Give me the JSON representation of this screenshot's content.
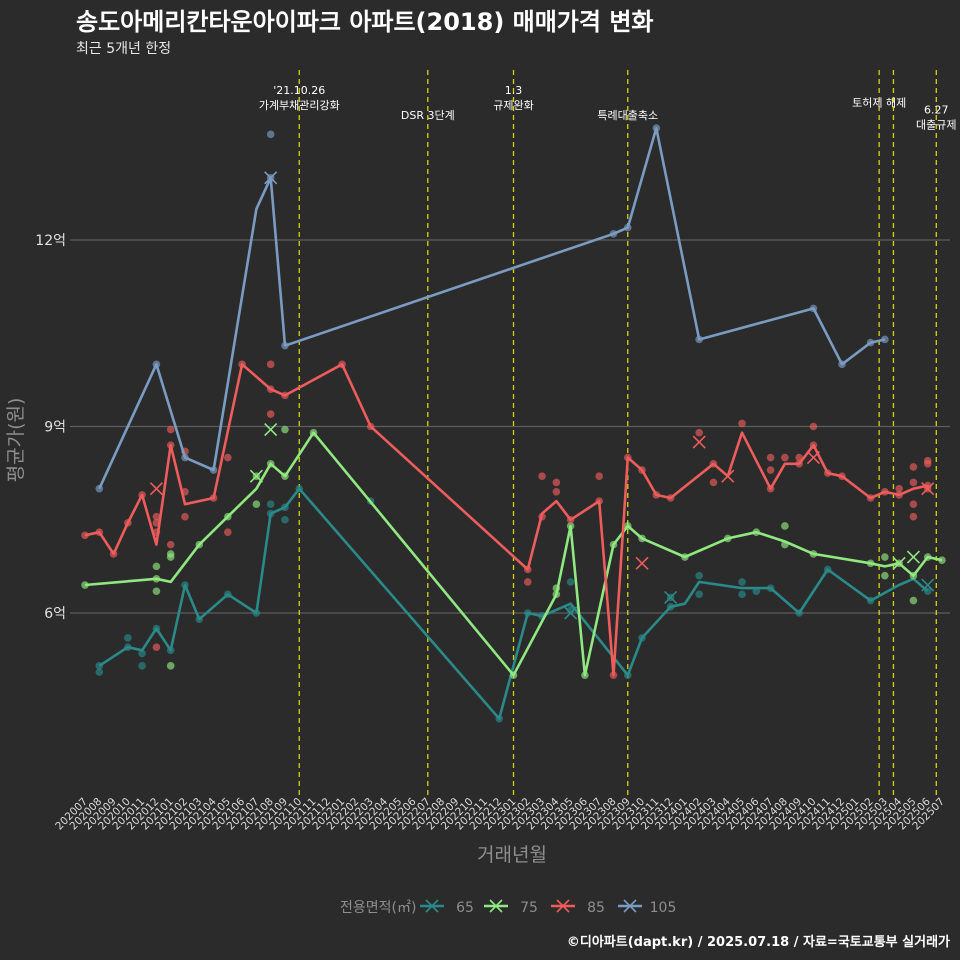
{
  "title": "송도아메리칸타운아이파크 아파트(2018) 매매가격 변화",
  "subtitle": "최근 5개년 한정",
  "footer": "©디아파트(dapt.kr) / 2025.07.18 / 자료=국토교통부 실거래가",
  "chart_data": {
    "type": "line",
    "xlabel": "거래년월",
    "ylabel": "평균가(원)",
    "ylim": [
      3.8,
      13.7
    ],
    "y_ticks": [
      {
        "value": 6,
        "label": "6억"
      },
      {
        "value": 9,
        "label": "9억"
      },
      {
        "value": 12,
        "label": "12억"
      }
    ],
    "x_categories": [
      "202007",
      "202008",
      "202009",
      "202010",
      "202011",
      "202012",
      "202101",
      "202102",
      "202103",
      "202104",
      "202105",
      "202106",
      "202107",
      "202108",
      "202109",
      "202110",
      "202111",
      "202112",
      "202201",
      "202202",
      "202203",
      "202204",
      "202205",
      "202206",
      "202207",
      "202208",
      "202209",
      "202210",
      "202211",
      "202212",
      "202301",
      "202302",
      "202303",
      "202304",
      "202305",
      "202306",
      "202307",
      "202308",
      "202309",
      "202310",
      "202311",
      "202312",
      "202401",
      "202402",
      "202403",
      "202404",
      "202405",
      "202406",
      "202407",
      "202408",
      "202409",
      "202410",
      "202411",
      "202412",
      "202501",
      "202502",
      "202503",
      "202504",
      "202505",
      "202506",
      "202507"
    ],
    "legend_title": "전용면적(㎡)",
    "grid": true,
    "events": [
      {
        "x": 15.0,
        "label_lines": [
          "'21.10.26",
          "가계부채관리강화"
        ],
        "level": 0
      },
      {
        "x": 24.0,
        "label_lines": [
          "DSR 3단계"
        ],
        "level": 2
      },
      {
        "x": 30.0,
        "label_lines": [
          "1.3",
          "규제완화"
        ],
        "level": 0
      },
      {
        "x": 38.0,
        "label_lines": [
          "특례대출축소"
        ],
        "level": 2
      },
      {
        "x": 55.6,
        "label_lines": [
          "토허제 해제"
        ],
        "level": 1
      },
      {
        "x": 56.6,
        "label_lines": [],
        "level": 1
      },
      {
        "x": 59.6,
        "label_lines": [
          "6.27",
          "대출규제"
        ],
        "level": 1.55
      }
    ],
    "series": [
      {
        "name": "65",
        "color": "#2a8a8a",
        "line": [
          [
            1,
            5.15
          ],
          [
            3,
            5.45
          ],
          [
            4,
            5.4
          ],
          [
            5,
            5.75
          ],
          [
            6,
            5.4
          ],
          [
            7,
            6.45
          ],
          [
            8,
            5.9
          ],
          [
            10,
            6.3
          ],
          [
            12,
            6.0
          ],
          [
            13,
            7.6
          ],
          [
            14,
            7.7
          ],
          [
            15,
            8.0
          ],
          [
            29,
            4.3
          ],
          [
            31,
            6.0
          ],
          [
            32,
            5.95
          ],
          [
            34,
            6.15
          ],
          [
            38,
            5.0
          ],
          [
            39,
            5.6
          ],
          [
            41,
            6.1
          ],
          [
            42,
            6.15
          ],
          [
            43,
            6.5
          ],
          [
            46,
            6.4
          ],
          [
            47,
            6.4
          ],
          [
            48,
            6.4
          ],
          [
            50,
            6.0
          ],
          [
            52,
            6.7
          ],
          [
            55,
            6.2
          ],
          [
            57,
            6.45
          ],
          [
            58,
            6.55
          ],
          [
            59,
            6.35
          ]
        ],
        "points": [
          [
            1,
            5.05
          ],
          [
            1,
            5.15
          ],
          [
            3,
            5.45
          ],
          [
            3,
            5.6
          ],
          [
            4,
            5.35
          ],
          [
            4,
            5.15
          ],
          [
            5,
            5.75
          ],
          [
            6,
            5.4
          ],
          [
            7,
            6.45
          ],
          [
            8,
            5.9
          ],
          [
            10,
            6.3
          ],
          [
            12,
            6.0
          ],
          [
            13,
            7.6
          ],
          [
            13,
            7.75
          ],
          [
            14,
            7.7
          ],
          [
            14,
            7.5
          ],
          [
            15,
            8.0
          ],
          [
            20,
            7.8
          ],
          [
            29,
            4.3
          ],
          [
            31,
            6.0
          ],
          [
            32,
            5.95
          ],
          [
            34,
            6.5
          ],
          [
            34,
            6.05
          ],
          [
            38,
            5.0
          ],
          [
            39,
            5.6
          ],
          [
            41,
            6.1
          ],
          [
            41,
            6.25
          ],
          [
            43,
            6.3
          ],
          [
            43,
            6.6
          ],
          [
            46,
            6.5
          ],
          [
            46,
            6.3
          ],
          [
            47,
            6.35
          ],
          [
            48,
            6.4
          ],
          [
            50,
            6.0
          ],
          [
            52,
            6.7
          ],
          [
            55,
            6.2
          ],
          [
            59,
            6.35
          ]
        ],
        "marks": [
          [
            34,
            6.0
          ],
          [
            41,
            6.25
          ],
          [
            59,
            6.45
          ]
        ]
      },
      {
        "name": "75",
        "color": "#90e880",
        "line": [
          [
            0,
            6.45
          ],
          [
            5,
            6.55
          ],
          [
            6,
            6.5
          ],
          [
            8,
            7.1
          ],
          [
            10,
            7.55
          ],
          [
            12,
            8.0
          ],
          [
            13,
            8.4
          ],
          [
            14,
            8.2
          ],
          [
            16,
            8.9
          ],
          [
            30,
            5.0
          ],
          [
            33,
            6.3
          ],
          [
            34,
            7.4
          ],
          [
            35,
            5.0
          ],
          [
            37,
            7.1
          ],
          [
            38,
            7.4
          ],
          [
            39,
            7.2
          ],
          [
            42,
            6.9
          ],
          [
            45,
            7.2
          ],
          [
            47,
            7.3
          ],
          [
            49,
            7.15
          ],
          [
            51,
            6.95
          ],
          [
            55,
            6.8
          ],
          [
            56,
            6.75
          ],
          [
            57,
            6.8
          ],
          [
            58,
            6.6
          ],
          [
            59,
            6.9
          ],
          [
            60,
            6.85
          ]
        ],
        "points": [
          [
            0,
            6.45
          ],
          [
            5,
            6.55
          ],
          [
            5,
            6.75
          ],
          [
            5,
            6.35
          ],
          [
            6,
            6.9
          ],
          [
            6,
            6.95
          ],
          [
            6,
            5.15
          ],
          [
            8,
            7.1
          ],
          [
            10,
            7.55
          ],
          [
            12,
            7.75
          ],
          [
            12,
            8.2
          ],
          [
            13,
            8.4
          ],
          [
            14,
            8.2
          ],
          [
            14,
            8.95
          ],
          [
            16,
            8.9
          ],
          [
            30,
            5.0
          ],
          [
            33,
            6.3
          ],
          [
            33,
            6.4
          ],
          [
            34,
            7.4
          ],
          [
            35,
            5.0
          ],
          [
            37,
            7.1
          ],
          [
            38,
            7.4
          ],
          [
            39,
            7.2
          ],
          [
            42,
            6.9
          ],
          [
            45,
            7.2
          ],
          [
            47,
            7.3
          ],
          [
            49,
            7.1
          ],
          [
            49,
            7.4
          ],
          [
            51,
            6.95
          ],
          [
            55,
            6.8
          ],
          [
            56,
            6.6
          ],
          [
            56,
            6.9
          ],
          [
            57,
            6.8
          ],
          [
            58,
            6.2
          ],
          [
            58,
            6.6
          ],
          [
            59,
            6.9
          ],
          [
            60,
            6.85
          ]
        ],
        "marks": [
          [
            12,
            8.2
          ],
          [
            13,
            8.95
          ],
          [
            57,
            6.8
          ],
          [
            58,
            6.9
          ]
        ]
      },
      {
        "name": "85",
        "color": "#ee5c5c",
        "line": [
          [
            0,
            7.25
          ],
          [
            1,
            7.3
          ],
          [
            2,
            6.95
          ],
          [
            3,
            7.45
          ],
          [
            4,
            7.9
          ],
          [
            5,
            7.1
          ],
          [
            6,
            8.7
          ],
          [
            7,
            7.75
          ],
          [
            9,
            7.85
          ],
          [
            11,
            10.0
          ],
          [
            13,
            9.6
          ],
          [
            14,
            9.5
          ],
          [
            18,
            10.0
          ],
          [
            20,
            9.0
          ],
          [
            31,
            6.7
          ],
          [
            32,
            7.6
          ],
          [
            33,
            7.8
          ],
          [
            34,
            7.5
          ],
          [
            36,
            7.8
          ],
          [
            37,
            5.0
          ],
          [
            38,
            8.5
          ],
          [
            39,
            8.3
          ],
          [
            40,
            7.9
          ],
          [
            41,
            7.85
          ],
          [
            44,
            8.4
          ],
          [
            45,
            8.2
          ],
          [
            46,
            8.9
          ],
          [
            48,
            8.0
          ],
          [
            49,
            8.4
          ],
          [
            50,
            8.4
          ],
          [
            51,
            8.7
          ],
          [
            52,
            8.25
          ],
          [
            53,
            8.2
          ],
          [
            55,
            7.85
          ],
          [
            56,
            7.95
          ],
          [
            57,
            7.9
          ],
          [
            58,
            8.0
          ],
          [
            59,
            8.05
          ]
        ],
        "points": [
          [
            0,
            7.25
          ],
          [
            1,
            7.3
          ],
          [
            2,
            6.95
          ],
          [
            3,
            7.45
          ],
          [
            4,
            7.9
          ],
          [
            5,
            7.55
          ],
          [
            5,
            7.45
          ],
          [
            5,
            7.3
          ],
          [
            5,
            5.45
          ],
          [
            6,
            8.95
          ],
          [
            6,
            8.7
          ],
          [
            6,
            7.1
          ],
          [
            7,
            8.6
          ],
          [
            7,
            7.95
          ],
          [
            7,
            7.55
          ],
          [
            9,
            7.85
          ],
          [
            10,
            7.3
          ],
          [
            10,
            8.5
          ],
          [
            11,
            10.0
          ],
          [
            13,
            10.0
          ],
          [
            13,
            9.2
          ],
          [
            13,
            9.6
          ],
          [
            14,
            9.5
          ],
          [
            18,
            10.0
          ],
          [
            20,
            9.0
          ],
          [
            31,
            6.5
          ],
          [
            31,
            6.7
          ],
          [
            32,
            8.2
          ],
          [
            32,
            7.55
          ],
          [
            33,
            8.1
          ],
          [
            33,
            7.95
          ],
          [
            34,
            7.5
          ],
          [
            36,
            8.2
          ],
          [
            36,
            7.8
          ],
          [
            37,
            5.0
          ],
          [
            38,
            8.5
          ],
          [
            39,
            8.3
          ],
          [
            40,
            7.9
          ],
          [
            41,
            7.85
          ],
          [
            43,
            8.9
          ],
          [
            44,
            8.1
          ],
          [
            44,
            8.4
          ],
          [
            46,
            9.05
          ],
          [
            48,
            8.3
          ],
          [
            48,
            8.0
          ],
          [
            48,
            8.5
          ],
          [
            49,
            8.5
          ],
          [
            50,
            8.4
          ],
          [
            50,
            8.5
          ],
          [
            51,
            8.7
          ],
          [
            51,
            9.0
          ],
          [
            52,
            8.25
          ],
          [
            53,
            8.2
          ],
          [
            55,
            7.85
          ],
          [
            56,
            7.95
          ],
          [
            57,
            7.9
          ],
          [
            57,
            8.0
          ],
          [
            58,
            8.35
          ],
          [
            58,
            7.75
          ],
          [
            58,
            7.55
          ],
          [
            58,
            8.1
          ],
          [
            59,
            8.05
          ],
          [
            59,
            8.4
          ],
          [
            59,
            8.45
          ],
          [
            59,
            8.0
          ]
        ],
        "marks": [
          [
            5,
            8.0
          ],
          [
            39,
            6.8
          ],
          [
            43,
            8.75
          ],
          [
            45,
            8.2
          ],
          [
            51,
            8.5
          ],
          [
            59,
            8.0
          ]
        ]
      },
      {
        "name": "105",
        "color": "#7b9cc2",
        "line": [
          [
            1,
            8.0
          ],
          [
            5,
            10.0
          ],
          [
            7,
            8.5
          ],
          [
            9,
            8.3
          ],
          [
            12,
            12.5
          ],
          [
            13,
            13.0
          ],
          [
            14,
            10.3
          ],
          [
            37,
            12.1
          ],
          [
            38,
            12.2
          ],
          [
            40,
            13.8
          ],
          [
            43,
            10.4
          ],
          [
            51,
            10.9
          ],
          [
            53,
            10.0
          ],
          [
            55,
            10.35
          ],
          [
            56,
            10.4
          ]
        ],
        "points": [
          [
            1,
            8.0
          ],
          [
            5,
            10.0
          ],
          [
            7,
            8.5
          ],
          [
            9,
            8.3
          ],
          [
            13,
            13.0
          ],
          [
            13,
            13.7
          ],
          [
            14,
            10.3
          ],
          [
            37,
            12.1
          ],
          [
            38,
            12.2
          ],
          [
            40,
            13.8
          ],
          [
            43,
            10.4
          ],
          [
            51,
            10.9
          ],
          [
            53,
            10.0
          ],
          [
            55,
            10.35
          ],
          [
            56,
            10.4
          ]
        ],
        "marks": [
          [
            13,
            13.0
          ]
        ]
      }
    ]
  }
}
